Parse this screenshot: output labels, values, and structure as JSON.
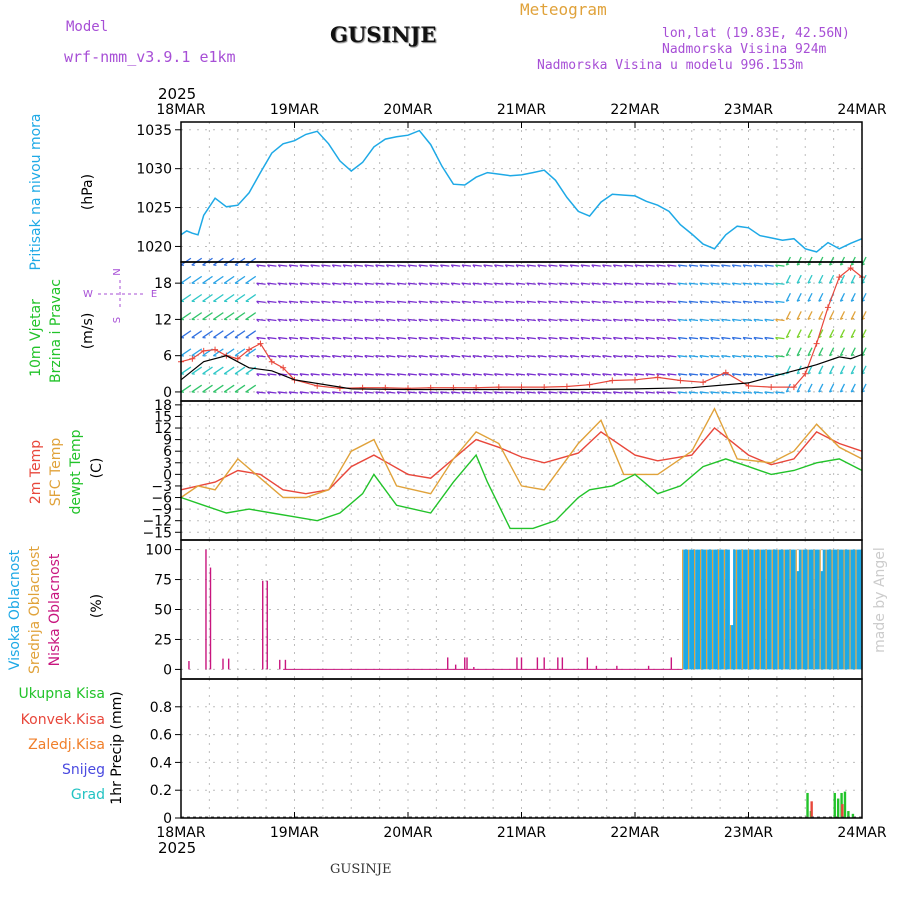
{
  "header": {
    "model_label": "Model",
    "model_name": "wrf-nmm_v3.9.1 e1km",
    "station": "GUSINJE",
    "chart_kind": "Meteogram",
    "coords": "lon,lat (19.83E, 42.56N)",
    "elevation": "Nadmorska Visina 924m",
    "model_elevation": "Nadmorska Visina u modelu 996.153m",
    "credit": "made by Angel",
    "footer_station": "GUSINJE"
  },
  "colors": {
    "pressure": "#1ea9e6",
    "temp2m": "#e8473b",
    "sfc_temp": "#e0a23a",
    "dewpoint": "#22c32a",
    "high_cloud": "#1ea9e6",
    "mid_cloud": "#e0a23a",
    "low_cloud": "#c8157e",
    "total_precip": "#22c32a",
    "conv_precip": "#e8473b",
    "frozen_precip": "#f07f2a",
    "snow": "#4a4ae0",
    "hail": "#22c3c3",
    "purple_text": "#a74fd6"
  },
  "chart_data": [
    {
      "type": "line",
      "panel": "pressure",
      "ylabel_main": "Pritisak na nivou mora",
      "unit": "(hPa)",
      "ylim": [
        1018,
        1036
      ],
      "yticks": [
        1020,
        1025,
        1030,
        1035
      ],
      "x_axis": {
        "year": "2025",
        "start": "18MAR",
        "end": "24MAR",
        "tick_labels": [
          "18MAR",
          "19MAR",
          "20MAR",
          "21MAR",
          "22MAR",
          "23MAR",
          "24MAR"
        ]
      },
      "grid": true,
      "series": [
        {
          "x": [
            0,
            0.05,
            0.1,
            0.15,
            0.2,
            0.3,
            0.4,
            0.5,
            0.6,
            0.7,
            0.8,
            0.9,
            1.0,
            1.1,
            1.2,
            1.3,
            1.4,
            1.5,
            1.6,
            1.7,
            1.8,
            1.9,
            2.0,
            2.1,
            2.2,
            2.3,
            2.4,
            2.5,
            2.6,
            2.7,
            2.8,
            2.9,
            3.0,
            3.1,
            3.2,
            3.3,
            3.4,
            3.5,
            3.6,
            3.7,
            3.8,
            3.9,
            4.0,
            4.1,
            4.2,
            4.3,
            4.4,
            4.5,
            4.6,
            4.7,
            4.8,
            4.9,
            5.0,
            5.1,
            5.2,
            5.3,
            5.4,
            5.5,
            5.6,
            5.7,
            5.8,
            5.9,
            6.0
          ],
          "y": [
            1021.5,
            1022,
            1021.7,
            1021.5,
            1024,
            1026.2,
            1025.1,
            1025.3,
            1026.9,
            1029.5,
            1032,
            1033.2,
            1033.6,
            1034.4,
            1034.8,
            1033.2,
            1031,
            1029.7,
            1030.8,
            1032.8,
            1033.8,
            1034.1,
            1034.3,
            1034.9,
            1033.1,
            1030.3,
            1028,
            1027.9,
            1028.9,
            1029.5,
            1029.3,
            1029.1,
            1029.2,
            1029.5,
            1029.8,
            1028.5,
            1026.3,
            1024.5,
            1023.9,
            1025.7,
            1026.7,
            1026.6,
            1026.5,
            1025.8,
            1025.3,
            1024.5,
            1022.8,
            1021.6,
            1020.3,
            1019.7,
            1021.5,
            1022.6,
            1022.4,
            1021.4,
            1021.1,
            1020.8,
            1021,
            1019.7,
            1019.3,
            1020.5,
            1019.7,
            1020.4,
            1021
          ]
        }
      ]
    },
    {
      "type": "line",
      "panel": "wind",
      "ylabel_main": "10m Vjetar",
      "ylabel_sub": "Brzina i Pravac",
      "unit": "(m/s)",
      "compass": [
        "N",
        "E",
        "S",
        "W"
      ],
      "ylim": [
        -1.5,
        21.5
      ],
      "yticks": [
        0,
        6,
        12,
        18
      ],
      "grid": true,
      "series": [
        {
          "x": [
            0,
            0.1,
            0.2,
            0.3,
            0.4,
            0.5,
            0.6,
            0.7,
            0.8,
            0.9,
            1.0,
            1.2,
            1.4,
            1.6,
            1.8,
            2.0,
            2.2,
            2.4,
            2.6,
            2.8,
            3.0,
            3.2,
            3.4,
            3.6,
            3.8,
            4.0,
            4.2,
            4.4,
            4.6,
            4.8,
            5.0,
            5.2,
            5.4,
            5.5,
            5.6,
            5.7,
            5.8,
            5.9,
            6.0
          ],
          "y": [
            5,
            5.5,
            6.8,
            7,
            6,
            5.5,
            7,
            8,
            5,
            4,
            2,
            1,
            0.6,
            0.7,
            0.7,
            0.6,
            0.7,
            0.7,
            0.7,
            0.8,
            0.8,
            0.8,
            0.9,
            1.2,
            1.9,
            2,
            2.4,
            1.9,
            1.6,
            3.2,
            1,
            0.8,
            0.8,
            3,
            8,
            14,
            19,
            20.5,
            19
          ]
        },
        {
          "x": [
            0,
            0.2,
            0.4,
            0.6,
            0.8,
            1.0,
            1.5,
            2.0,
            2.5,
            3.0,
            3.5,
            4.0,
            4.5,
            5.0,
            5.3,
            5.5,
            5.6,
            5.8,
            5.9,
            6.0
          ],
          "y": [
            2,
            5,
            6,
            4,
            3.5,
            2,
            0.5,
            0.4,
            0.4,
            0.4,
            0.4,
            0.5,
            0.7,
            1.5,
            3,
            4,
            4.5,
            5.8,
            5.5,
            6.2
          ]
        }
      ]
    },
    {
      "type": "line",
      "panel": "temperature",
      "ylabels": [
        "2m Temp",
        "SFC Temp",
        "dewpt Temp"
      ],
      "unit": "(C)",
      "ylim": [
        -17,
        19
      ],
      "yticks": [
        -15,
        -12,
        -9,
        -6,
        -3,
        0,
        3,
        6,
        9,
        12,
        15,
        18
      ],
      "grid": true,
      "series": [
        {
          "name": "2m Temp",
          "x": [
            0,
            0.15,
            0.3,
            0.5,
            0.7,
            0.9,
            1.1,
            1.3,
            1.5,
            1.7,
            2.0,
            2.2,
            2.4,
            2.6,
            2.8,
            3.0,
            3.2,
            3.5,
            3.7,
            4.0,
            4.2,
            4.5,
            4.7,
            5.0,
            5.2,
            5.4,
            5.6,
            5.8,
            6.0
          ],
          "y": [
            -4,
            -3,
            -2,
            1,
            0,
            -4,
            -5,
            -4,
            2,
            5,
            0,
            -1,
            4,
            9,
            7,
            4.5,
            3,
            5.5,
            11,
            5,
            3.5,
            5,
            12,
            5,
            2.5,
            4,
            11,
            8,
            6
          ]
        },
        {
          "name": "SFC Temp",
          "x": [
            0,
            0.15,
            0.3,
            0.5,
            0.7,
            0.9,
            1.1,
            1.3,
            1.5,
            1.7,
            1.9,
            2.2,
            2.4,
            2.6,
            2.8,
            3.0,
            3.2,
            3.5,
            3.7,
            3.9,
            4.2,
            4.5,
            4.7,
            4.9,
            5.2,
            5.4,
            5.6,
            5.8,
            6.0
          ],
          "y": [
            -6,
            -3,
            -4,
            4,
            -1,
            -6,
            -6,
            -4,
            6,
            9,
            -3,
            -5,
            4,
            11,
            8,
            -3,
            -4,
            8,
            14,
            0,
            0,
            6,
            17,
            4,
            3,
            6,
            13,
            7,
            4
          ]
        },
        {
          "name": "dewpt Temp",
          "x": [
            0,
            0.2,
            0.4,
            0.6,
            0.8,
            1.0,
            1.2,
            1.4,
            1.6,
            1.7,
            1.9,
            2.2,
            2.4,
            2.6,
            2.7,
            2.9,
            3.1,
            3.3,
            3.5,
            3.6,
            3.8,
            4.0,
            4.2,
            4.4,
            4.6,
            4.8,
            5.0,
            5.2,
            5.4,
            5.6,
            5.8,
            6.0
          ],
          "y": [
            -6,
            -8,
            -10,
            -9,
            -10,
            -11,
            -12,
            -10,
            -5,
            0,
            -8,
            -10,
            -2,
            5,
            -2,
            -14,
            -14,
            -12,
            -6,
            -4,
            -3,
            0,
            -5,
            -3,
            2,
            4,
            2,
            0,
            1,
            3,
            4,
            1
          ]
        }
      ]
    },
    {
      "type": "bar",
      "panel": "cloud",
      "ylabels": [
        "Visoka Oblacnost",
        "Srednja Oblacnost",
        "Niska Oblacnost"
      ],
      "unit": "(%)",
      "ylim": [
        0,
        100
      ],
      "yticks": [
        0,
        25,
        50,
        75,
        100
      ],
      "grid": true,
      "series": [
        {
          "name": "Niska Oblacnost",
          "x": [
            0.07,
            0.22,
            0.26,
            0.37,
            0.42,
            0.72,
            0.76,
            0.87,
            0.92,
            2.35,
            2.42,
            2.5,
            2.52,
            2.58,
            2.96,
            3.0,
            3.14,
            3.2,
            3.32,
            3.36,
            3.58,
            3.66,
            3.84,
            4.12,
            4.32
          ],
          "y": [
            7,
            100,
            85,
            9,
            9,
            74,
            74,
            8,
            8,
            10,
            4,
            10,
            10,
            2,
            10,
            10,
            10,
            10,
            10,
            10,
            10,
            3,
            3,
            3,
            10
          ]
        },
        {
          "name": "Visoka/Srednja Oblacnost",
          "x": [
            4.42,
            6.0
          ],
          "y": [
            100,
            100
          ]
        }
      ]
    },
    {
      "type": "bar",
      "panel": "precip",
      "ylabels": [
        "Ukupna Kisa",
        "Konvek.Kisa",
        "Zaledj.Kisa",
        "Snijeg",
        "Grad"
      ],
      "unit": "1hr Precip (mm)",
      "ylim": [
        0,
        1.0
      ],
      "yticks": [
        0,
        0.2,
        0.4,
        0.6,
        0.8
      ],
      "grid": true,
      "series": [
        {
          "name": "Ukupna Kisa",
          "x": [
            5.52,
            5.55,
            5.76,
            5.79,
            5.82,
            5.85,
            5.88,
            5.92
          ],
          "y": [
            0.18,
            0.05,
            0.18,
            0.14,
            0.18,
            0.19,
            0.05,
            0.03
          ]
        },
        {
          "name": "Konvek.Kisa",
          "x": [
            5.53,
            5.8
          ],
          "y": [
            0.12,
            0.1
          ]
        }
      ]
    }
  ]
}
